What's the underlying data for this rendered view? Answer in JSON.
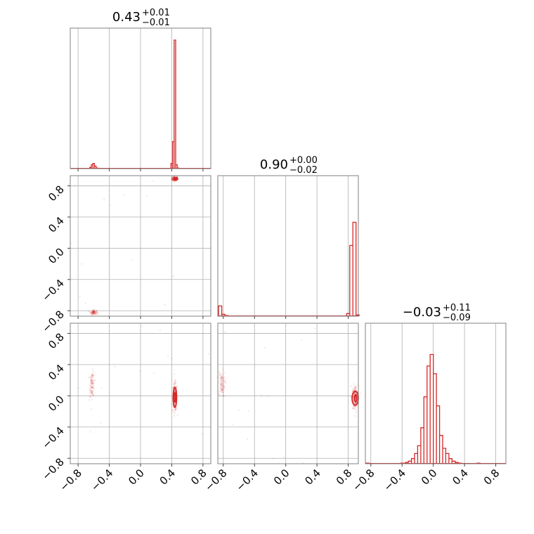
{
  "chart_data": {
    "type": "corner",
    "color": "#d62728",
    "grid": true,
    "tick_labels": [
      "−0.8",
      "−0.4",
      "0.0",
      "0.4",
      "0.8"
    ],
    "tick_values": [
      -0.8,
      -0.4,
      0.0,
      0.4,
      0.8
    ],
    "parameters": [
      {
        "range": [
          -0.9,
          0.9
        ],
        "title": {
          "median": "0.43",
          "plus": "+0.01",
          "minus": "−0.01"
        },
        "hist": [
          {
            "x": -0.64,
            "h": 0.01
          },
          {
            "x": -0.62,
            "h": 0.03
          },
          {
            "x": -0.6,
            "h": 0.04
          },
          {
            "x": -0.58,
            "h": 0.02
          },
          {
            "x": -0.56,
            "h": 0.005
          },
          {
            "x": 0.4,
            "h": 0.04
          },
          {
            "x": 0.42,
            "h": 0.21
          },
          {
            "x": 0.44,
            "h": 1.0
          },
          {
            "x": 0.46,
            "h": 0.03
          },
          {
            "x": 0.48,
            "h": 0.005
          }
        ]
      },
      {
        "range": [
          -0.87,
          0.93
        ],
        "title": {
          "median": "0.90",
          "plus": "+0.00",
          "minus": "−0.02"
        },
        "hist": [
          {
            "x": -0.84,
            "h": 0.08
          },
          {
            "x": -0.8,
            "h": 0.015
          },
          {
            "x": -0.76,
            "h": 0.005
          },
          {
            "x": 0.8,
            "h": 0.02
          },
          {
            "x": 0.84,
            "h": 0.55
          },
          {
            "x": 0.88,
            "h": 0.73
          },
          {
            "x": 0.92,
            "h": 0.01
          }
        ]
      },
      {
        "range": [
          -0.87,
          0.93
        ],
        "title": {
          "median": "−0.03",
          "plus": "+0.11",
          "minus": "−0.09"
        },
        "hist": [
          {
            "x": -0.84,
            "h": 0.005
          },
          {
            "x": -0.4,
            "h": 0.005
          },
          {
            "x": -0.34,
            "h": 0.01
          },
          {
            "x": -0.3,
            "h": 0.02
          },
          {
            "x": -0.26,
            "h": 0.04
          },
          {
            "x": -0.22,
            "h": 0.08
          },
          {
            "x": -0.18,
            "h": 0.14
          },
          {
            "x": -0.14,
            "h": 0.28
          },
          {
            "x": -0.1,
            "h": 0.52
          },
          {
            "x": -0.06,
            "h": 0.76
          },
          {
            "x": -0.02,
            "h": 0.85
          },
          {
            "x": 0.02,
            "h": 0.7
          },
          {
            "x": 0.06,
            "h": 0.45
          },
          {
            "x": 0.1,
            "h": 0.22
          },
          {
            "x": 0.14,
            "h": 0.12
          },
          {
            "x": 0.18,
            "h": 0.08
          },
          {
            "x": 0.22,
            "h": 0.04
          },
          {
            "x": 0.26,
            "h": 0.02
          },
          {
            "x": 0.3,
            "h": 0.01
          },
          {
            "x": 0.34,
            "h": 0.005
          },
          {
            "x": 0.58,
            "h": 0.005
          }
        ]
      }
    ],
    "scatter": [
      {
        "row": 1,
        "col": 0,
        "clusters": [
          {
            "cx": 0.44,
            "cy": 0.89,
            "sx": 0.02,
            "sy": 0.015
          },
          {
            "cx": -0.6,
            "cy": -0.82,
            "sx": 0.02,
            "sy": 0.015
          }
        ],
        "contours": [
          {
            "cx": 0.45,
            "cy": 0.89,
            "rx": 0.025,
            "ry": 0.015
          }
        ]
      },
      {
        "row": 2,
        "col": 0,
        "clusters": [
          {
            "cx": 0.44,
            "cy": -0.02,
            "sx": 0.015,
            "sy": 0.09
          },
          {
            "cx": -0.62,
            "cy": 0.15,
            "sx": 0.015,
            "sy": 0.08
          }
        ],
        "contours": [
          {
            "cx": 0.44,
            "cy": -0.02,
            "rx": 0.022,
            "ry": 0.13
          },
          {
            "cx": 0.44,
            "cy": -0.02,
            "rx": 0.01,
            "ry": 0.06
          }
        ]
      },
      {
        "row": 2,
        "col": 1,
        "clusters": [
          {
            "cx": 0.89,
            "cy": -0.03,
            "sx": 0.02,
            "sy": 0.08
          },
          {
            "cx": -0.82,
            "cy": 0.15,
            "sx": 0.02,
            "sy": 0.08
          }
        ],
        "contours": [
          {
            "cx": 0.89,
            "cy": -0.03,
            "rx": 0.04,
            "ry": 0.09
          },
          {
            "cx": 0.895,
            "cy": -0.03,
            "rx": 0.015,
            "ry": 0.045
          }
        ]
      }
    ]
  }
}
